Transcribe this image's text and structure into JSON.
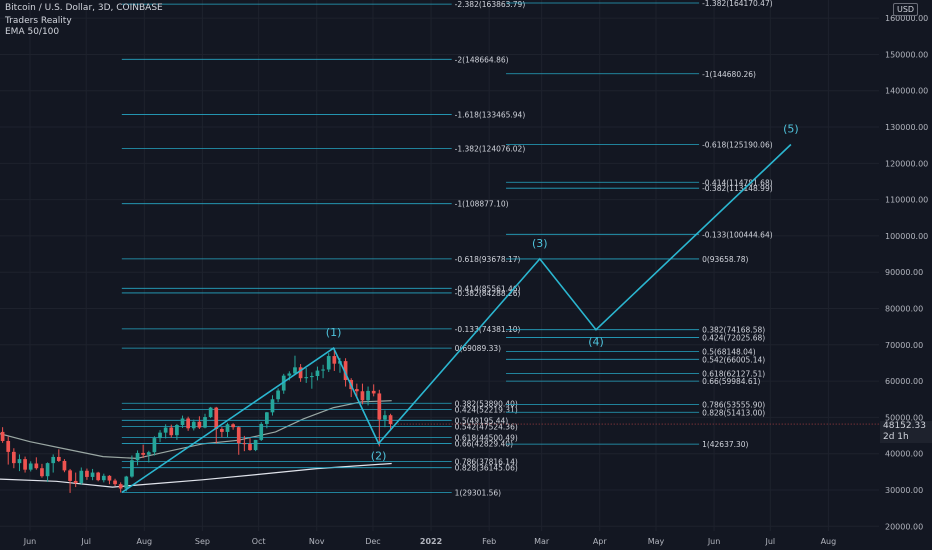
{
  "header": {
    "symbol": "Bitcoin / U.S. Dollar, 3D, COINBASE",
    "indicator1": "Traders Reality",
    "indicator2": "EMA 50/100"
  },
  "currency": "USD",
  "last_price": "48152.33",
  "countdown": "2d 1h",
  "colors": {
    "background": "#131722",
    "fib_line": "#26a7c4",
    "fib_text": "#d1d4dc",
    "wave_line": "#2bb6d0",
    "wave_label": "#4fc3dc",
    "candle_up": "#26a69a",
    "candle_down": "#ef5350",
    "ema_50": "#9aa7a3",
    "ema_100": "#e0e3eb",
    "axis_text": "#b2b5be",
    "grid": "#1e222d"
  },
  "chart_data": {
    "type": "candlestick",
    "title": "Bitcoin / U.S. Dollar, 3D, COINBASE",
    "y_axis": {
      "ticks": [
        20000,
        30000,
        40000,
        50000,
        60000,
        70000,
        80000,
        90000,
        100000,
        110000,
        120000,
        130000,
        140000,
        150000,
        160000
      ],
      "tick_labels": [
        "20000.00",
        "30000.00",
        "40000.00",
        "50000.00",
        "60000.00",
        "70000.00",
        "80000.00",
        "90000.00",
        "100000.00",
        "110000.00",
        "120000.00",
        "130000.00",
        "140000.00",
        "150000.00",
        "160000.00"
      ],
      "range": [
        18700,
        165000
      ]
    },
    "x_axis": {
      "labels": [
        "Jun",
        "Jul",
        "Aug",
        "Sep",
        "Oct",
        "Nov",
        "Dec",
        "2022",
        "Feb",
        "Mar",
        "Apr",
        "May",
        "Jun",
        "Jul",
        "Aug"
      ],
      "dates": [
        "2021-06-01",
        "2021-07-01",
        "2021-08-01",
        "2021-09-01",
        "2021-10-01",
        "2021-11-01",
        "2021-12-01",
        "2022-01-01",
        "2022-02-01",
        "2022-03-01",
        "2022-04-01",
        "2022-05-01",
        "2022-06-01",
        "2022-07-01",
        "2022-08-01"
      ],
      "range": [
        "2021-05-16",
        "2022-08-28"
      ]
    },
    "candles_3d": [
      [
        "2021-05-16",
        46000,
        47300,
        43000,
        43500
      ],
      [
        "2021-05-19",
        43500,
        44700,
        37000,
        40500
      ],
      [
        "2021-05-22",
        40500,
        41500,
        36000,
        37400
      ],
      [
        "2021-05-25",
        37400,
        39800,
        35200,
        38500
      ],
      [
        "2021-05-28",
        38500,
        39200,
        34800,
        35600
      ],
      [
        "2021-05-31",
        35600,
        37900,
        35100,
        37300
      ],
      [
        "2021-06-03",
        37300,
        39000,
        35600,
        36000
      ],
      [
        "2021-06-06",
        36000,
        37200,
        33400,
        33800
      ],
      [
        "2021-06-09",
        33800,
        37600,
        32200,
        37400
      ],
      [
        "2021-06-12",
        37400,
        39800,
        34800,
        39100
      ],
      [
        "2021-06-15",
        39100,
        41200,
        37700,
        38000
      ],
      [
        "2021-06-18",
        38000,
        38500,
        34900,
        35400
      ],
      [
        "2021-06-21",
        35400,
        35800,
        29200,
        32500
      ],
      [
        "2021-06-24",
        32500,
        34800,
        30800,
        31900
      ],
      [
        "2021-06-27",
        31900,
        36200,
        31400,
        35300
      ],
      [
        "2021-06-30",
        35300,
        35900,
        32800,
        33600
      ],
      [
        "2021-07-03",
        33600,
        35800,
        32700,
        34800
      ],
      [
        "2021-07-06",
        34800,
        35000,
        32400,
        32700
      ],
      [
        "2021-07-09",
        32700,
        34500,
        32100,
        33900
      ],
      [
        "2021-07-12",
        33900,
        34100,
        31600,
        32600
      ],
      [
        "2021-07-15",
        32600,
        33100,
        31100,
        31600
      ],
      [
        "2021-07-18",
        31600,
        32100,
        29300,
        30400
      ],
      [
        "2021-07-21",
        30400,
        33900,
        29600,
        33700
      ],
      [
        "2021-07-24",
        33700,
        39500,
        33400,
        38200
      ],
      [
        "2021-07-27",
        38200,
        40900,
        36800,
        40200
      ],
      [
        "2021-07-30",
        40200,
        42500,
        38800,
        39700
      ],
      [
        "2021-08-02",
        39700,
        40800,
        37600,
        40400
      ],
      [
        "2021-08-05",
        40400,
        44800,
        39500,
        44300
      ],
      [
        "2021-08-08",
        44300,
        46500,
        43200,
        45800
      ],
      [
        "2021-08-11",
        45800,
        48100,
        44200,
        47200
      ],
      [
        "2021-08-14",
        47200,
        48000,
        44400,
        45100
      ],
      [
        "2021-08-17",
        45100,
        48200,
        43800,
        47900
      ],
      [
        "2021-08-20",
        47900,
        50500,
        47100,
        49700
      ],
      [
        "2021-08-23",
        49700,
        50200,
        46300,
        47000
      ],
      [
        "2021-08-26",
        47000,
        49400,
        46400,
        48800
      ],
      [
        "2021-08-29",
        48800,
        50300,
        46800,
        47200
      ],
      [
        "2021-09-01",
        47200,
        51000,
        47000,
        50100
      ],
      [
        "2021-09-04",
        50100,
        52900,
        49800,
        52700
      ],
      [
        "2021-09-07",
        52700,
        52900,
        42800,
        46800
      ],
      [
        "2021-09-10",
        46800,
        47300,
        44500,
        46000
      ],
      [
        "2021-09-13",
        46000,
        48500,
        44600,
        48100
      ],
      [
        "2021-09-16",
        48100,
        48400,
        46600,
        47300
      ],
      [
        "2021-09-19",
        47300,
        47500,
        39700,
        42900
      ],
      [
        "2021-09-22",
        42900,
        44900,
        40700,
        42700
      ],
      [
        "2021-09-25",
        42700,
        44300,
        40800,
        41000
      ],
      [
        "2021-09-28",
        41000,
        43800,
        40700,
        43800
      ],
      [
        "2021-10-01",
        43800,
        48700,
        43500,
        48200
      ],
      [
        "2021-10-04",
        48200,
        51500,
        47000,
        51400
      ],
      [
        "2021-10-07",
        51400,
        56100,
        50500,
        55000
      ],
      [
        "2021-10-10",
        55000,
        58000,
        54200,
        57400
      ],
      [
        "2021-10-13",
        57400,
        62000,
        56500,
        61500
      ],
      [
        "2021-10-16",
        61500,
        62700,
        60200,
        62100
      ],
      [
        "2021-10-19",
        62100,
        67000,
        61800,
        63800
      ],
      [
        "2021-10-22",
        63800,
        64700,
        59800,
        60800
      ],
      [
        "2021-10-25",
        60800,
        63600,
        59500,
        61100
      ],
      [
        "2021-10-28",
        61100,
        62400,
        57900,
        61400
      ],
      [
        "2021-10-31",
        61400,
        64000,
        60200,
        62900
      ],
      [
        "2021-11-03",
        62900,
        64500,
        60800,
        63200
      ],
      [
        "2021-11-06",
        63200,
        67700,
        62500,
        66900
      ],
      [
        "2021-11-09",
        66900,
        69000,
        62800,
        64800
      ],
      [
        "2021-11-12",
        64800,
        66400,
        62300,
        65500
      ],
      [
        "2021-11-15",
        65500,
        66300,
        58500,
        60300
      ],
      [
        "2021-11-18",
        60300,
        60800,
        55600,
        57800
      ],
      [
        "2021-11-21",
        57800,
        59300,
        55400,
        57200
      ],
      [
        "2021-11-24",
        57200,
        59300,
        53600,
        54700
      ],
      [
        "2021-11-27",
        54700,
        58500,
        53300,
        57300
      ],
      [
        "2021-11-30",
        57300,
        59100,
        55800,
        56600
      ],
      [
        "2021-12-03",
        56600,
        57600,
        42000,
        49400
      ],
      [
        "2021-12-06",
        49400,
        51900,
        47300,
        50600
      ],
      [
        "2021-12-09",
        50600,
        51000,
        46800,
        48152
      ]
    ],
    "ema_50": [
      [
        "2021-05-16",
        45500
      ],
      [
        "2021-06-01",
        43300
      ],
      [
        "2021-06-20",
        41300
      ],
      [
        "2021-07-10",
        39200
      ],
      [
        "2021-07-28",
        38700
      ],
      [
        "2021-08-15",
        40800
      ],
      [
        "2021-09-01",
        42700
      ],
      [
        "2021-09-20",
        43700
      ],
      [
        "2021-10-10",
        46000
      ],
      [
        "2021-10-25",
        49600
      ],
      [
        "2021-11-10",
        52700
      ],
      [
        "2021-11-25",
        54300
      ],
      [
        "2021-12-11",
        54600
      ]
    ],
    "ema_100": [
      [
        "2021-05-16",
        33000
      ],
      [
        "2021-06-15",
        32400
      ],
      [
        "2021-07-15",
        30800
      ],
      [
        "2021-08-10",
        31900
      ],
      [
        "2021-09-01",
        32800
      ],
      [
        "2021-10-01",
        34300
      ],
      [
        "2021-11-01",
        35900
      ],
      [
        "2021-12-11",
        37300
      ]
    ],
    "elliott_wave": {
      "points": [
        [
          "2021-07-20",
          29301.56
        ],
        [
          "2021-11-10",
          69089.33
        ],
        [
          "2021-12-04",
          42800
        ],
        [
          "2022-02-28",
          93658.78
        ],
        [
          "2022-03-30",
          74168.58
        ],
        [
          "2022-07-12",
          125190.06
        ]
      ],
      "labels": [
        "(1)",
        "(2)",
        "(3)",
        "(4)",
        "(5)"
      ]
    },
    "fib_extension_1": {
      "x_range": [
        "2021-07-20",
        "2022-01-12"
      ],
      "levels": [
        {
          "label": "-2.382(163863.79)",
          "value": 163863.79
        },
        {
          "label": "-2(148664.86)",
          "value": 148664.86
        },
        {
          "label": "-1.618(133465.94)",
          "value": 133465.94
        },
        {
          "label": "-1.382(124076.02)",
          "value": 124076.02
        },
        {
          "label": "-1(108877.10)",
          "value": 108877.1
        },
        {
          "label": "-0.618(93678.17)",
          "value": 93678.17
        },
        {
          "label": "-0.414(85561.46)",
          "value": 85561.46
        },
        {
          "label": "-0.382(84288.26)",
          "value": 84288.26
        },
        {
          "label": "-0.133(74381.10)",
          "value": 74381.1
        },
        {
          "label": "0(69089.33)",
          "value": 69089.33
        },
        {
          "label": "0.382(53890.40)",
          "value": 53890.4
        },
        {
          "label": "0.424(52219.31)",
          "value": 52219.31
        },
        {
          "label": "0.5(49195.44)",
          "value": 49195.44
        },
        {
          "label": "0.542(47524.36)",
          "value": 47524.36
        },
        {
          "label": "0.618(44500.49)",
          "value": 44500.49
        },
        {
          "label": "0.66(42829.40)",
          "value": 42829.4
        },
        {
          "label": "0.786(37816.14)",
          "value": 37816.14
        },
        {
          "label": "0.828(36145.06)",
          "value": 36145.06
        },
        {
          "label": "1(29301.56)",
          "value": 29301.56
        }
      ]
    },
    "fib_extension_2": {
      "x_range": [
        "2022-02-10",
        "2022-05-24"
      ],
      "levels": [
        {
          "label": "-1.382(164170.47)",
          "value": 164170.47
        },
        {
          "label": "-1(144680.26)",
          "value": 144680.26
        },
        {
          "label": "-0.618(125190.06)",
          "value": 125190.06
        },
        {
          "label": "-0.414(114781.68)",
          "value": 114781.68
        },
        {
          "label": "-0.382(113148.99)",
          "value": 113148.99
        },
        {
          "label": "-0.133(100444.64)",
          "value": 100444.64
        },
        {
          "label": "0(93658.78)",
          "value": 93658.78
        },
        {
          "label": "0.382(74168.58)",
          "value": 74168.58
        },
        {
          "label": "0.424(72025.68)",
          "value": 72025.68
        },
        {
          "label": "0.5(68148.04)",
          "value": 68148.04
        },
        {
          "label": "0.542(66005.14)",
          "value": 66005.14
        },
        {
          "label": "0.618(62127.51)",
          "value": 62127.51
        },
        {
          "label": "0.66(59984.61)",
          "value": 59984.61
        },
        {
          "label": "0.786(53555.90)",
          "value": 53555.9
        },
        {
          "label": "0.828(51413.00)",
          "value": 51413.0
        },
        {
          "label": "1(42637.30)",
          "value": 42637.3
        }
      ]
    }
  }
}
